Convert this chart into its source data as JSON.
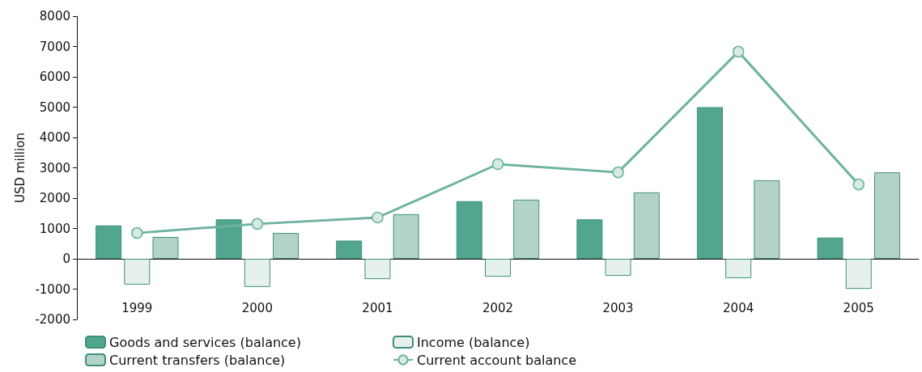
{
  "chart_data": {
    "type": "bar",
    "ylabel": "USD million",
    "categories": [
      "1999",
      "2000",
      "2001",
      "2002",
      "2003",
      "2004",
      "2005"
    ],
    "series": [
      {
        "name": "Goods and services (balance)",
        "color": "#52a690",
        "values": [
          1100,
          1300,
          600,
          1900,
          1300,
          5000,
          700
        ]
      },
      {
        "name": "Income (balance)",
        "color": "#e6f0ec",
        "values": [
          -850,
          -930,
          -670,
          -590,
          -560,
          -640,
          -990
        ]
      },
      {
        "name": "Current transfers (balance)",
        "color": "#b4d3c8",
        "values": [
          720,
          850,
          1470,
          1950,
          2190,
          2590,
          2850
        ]
      },
      {
        "name": "Current account balance",
        "type": "line",
        "color": "#6db3a0",
        "marker": "circle",
        "values": [
          850,
          1150,
          1360,
          3120,
          2850,
          6830,
          2450
        ]
      }
    ],
    "ylim": [
      -2000,
      8000
    ],
    "yticks": [
      -2000,
      -1000,
      0,
      1000,
      2000,
      3000,
      4000,
      5000,
      6000,
      7000,
      8000
    ],
    "legend": "bottom"
  }
}
